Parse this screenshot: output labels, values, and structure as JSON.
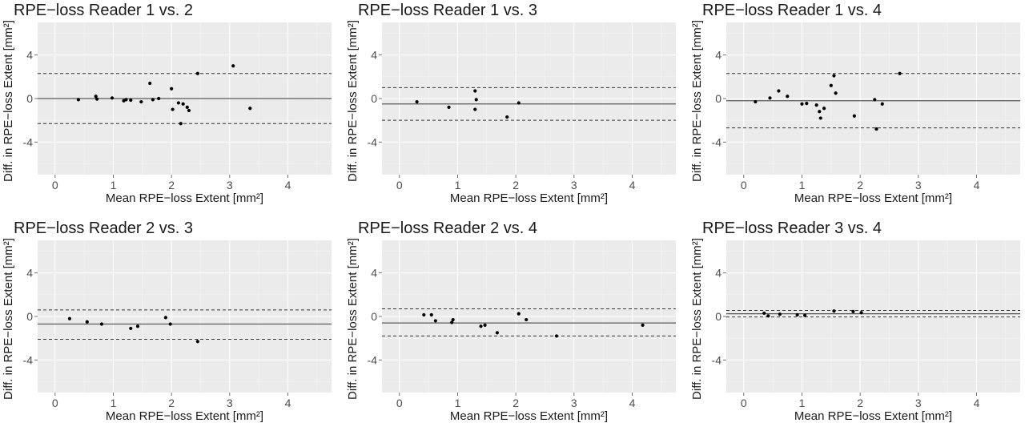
{
  "chart_data": [
    {
      "type": "scatter",
      "title": "RPE−loss Reader 1 vs. 2",
      "xlabel": "Mean RPE−loss Extent [mm²]",
      "ylabel": "Diff. in RPE−loss Extent [mm²]",
      "xlim": [
        -0.3,
        4.75
      ],
      "ylim": [
        -7,
        7
      ],
      "xticks": [
        0,
        1,
        2,
        3,
        4
      ],
      "yticks": [
        -4,
        0,
        4
      ],
      "mean_diff": 0.0,
      "loa_upper": 2.3,
      "loa_lower": -2.3,
      "points": [
        {
          "x": 0.4,
          "y": -0.1
        },
        {
          "x": 0.7,
          "y": 0.2
        },
        {
          "x": 0.72,
          "y": -0.05
        },
        {
          "x": 0.98,
          "y": 0.05
        },
        {
          "x": 1.18,
          "y": -0.2
        },
        {
          "x": 1.22,
          "y": -0.1
        },
        {
          "x": 1.3,
          "y": -0.15
        },
        {
          "x": 1.48,
          "y": -0.3
        },
        {
          "x": 1.63,
          "y": 1.4
        },
        {
          "x": 1.68,
          "y": -0.1
        },
        {
          "x": 1.78,
          "y": 0.0
        },
        {
          "x": 2.0,
          "y": 0.9
        },
        {
          "x": 2.02,
          "y": -1.0
        },
        {
          "x": 2.12,
          "y": -0.4
        },
        {
          "x": 2.16,
          "y": -2.3
        },
        {
          "x": 2.2,
          "y": -0.5
        },
        {
          "x": 2.27,
          "y": -0.8
        },
        {
          "x": 2.3,
          "y": -1.1
        },
        {
          "x": 2.45,
          "y": 2.3
        },
        {
          "x": 3.06,
          "y": 3.0
        },
        {
          "x": 3.35,
          "y": -0.9
        }
      ]
    },
    {
      "type": "scatter",
      "title": "RPE−loss Reader 1 vs. 3",
      "xlabel": "Mean RPE−loss Extent [mm²]",
      "ylabel": "Diff. in RPE−loss Extent [mm²]",
      "xlim": [
        -0.3,
        4.75
      ],
      "ylim": [
        -7,
        7
      ],
      "xticks": [
        0,
        1,
        2,
        3,
        4
      ],
      "yticks": [
        -4,
        0,
        4
      ],
      "mean_diff": -0.5,
      "loa_upper": 1.0,
      "loa_lower": -2.0,
      "points": [
        {
          "x": 0.3,
          "y": -0.3
        },
        {
          "x": 0.85,
          "y": -0.8
        },
        {
          "x": 1.3,
          "y": 0.7
        },
        {
          "x": 1.32,
          "y": -0.1
        },
        {
          "x": 1.3,
          "y": -1.0
        },
        {
          "x": 1.85,
          "y": -1.7
        },
        {
          "x": 2.05,
          "y": -0.4
        }
      ]
    },
    {
      "type": "scatter",
      "title": "RPE−loss Reader 1 vs. 4",
      "xlabel": "Mean RPE−loss Extent [mm²]",
      "ylabel": "Diff. in RPE−loss Extent [mm²]",
      "xlim": [
        -0.3,
        4.75
      ],
      "ylim": [
        -7,
        7
      ],
      "xticks": [
        0,
        1,
        2,
        3,
        4
      ],
      "yticks": [
        -4,
        0,
        4
      ],
      "mean_diff": -0.2,
      "loa_upper": 2.3,
      "loa_lower": -2.7,
      "points": [
        {
          "x": 0.2,
          "y": -0.3
        },
        {
          "x": 0.45,
          "y": 0.05
        },
        {
          "x": 0.6,
          "y": 0.7
        },
        {
          "x": 0.75,
          "y": 0.2
        },
        {
          "x": 1.0,
          "y": -0.5
        },
        {
          "x": 1.08,
          "y": -0.45
        },
        {
          "x": 1.25,
          "y": -0.6
        },
        {
          "x": 1.3,
          "y": -1.2
        },
        {
          "x": 1.32,
          "y": -1.8
        },
        {
          "x": 1.38,
          "y": -0.9
        },
        {
          "x": 1.5,
          "y": 1.2
        },
        {
          "x": 1.55,
          "y": 2.1
        },
        {
          "x": 1.58,
          "y": 0.5
        },
        {
          "x": 1.9,
          "y": -1.6
        },
        {
          "x": 2.25,
          "y": -0.1
        },
        {
          "x": 2.28,
          "y": -2.8
        },
        {
          "x": 2.38,
          "y": -0.5
        },
        {
          "x": 2.68,
          "y": 2.3
        }
      ]
    },
    {
      "type": "scatter",
      "title": "RPE−loss Reader 2 vs. 3",
      "xlabel": "Mean RPE−loss Extent [mm²]",
      "ylabel": "Diff. in RPE−loss Extent [mm²]",
      "xlim": [
        -0.3,
        4.75
      ],
      "ylim": [
        -7,
        7
      ],
      "xticks": [
        0,
        1,
        2,
        3,
        4
      ],
      "yticks": [
        -4,
        0,
        4
      ],
      "mean_diff": -0.7,
      "loa_upper": 0.6,
      "loa_lower": -2.1,
      "points": [
        {
          "x": 0.25,
          "y": -0.2
        },
        {
          "x": 0.55,
          "y": -0.5
        },
        {
          "x": 0.8,
          "y": -0.7
        },
        {
          "x": 1.3,
          "y": -1.1
        },
        {
          "x": 1.42,
          "y": -0.9
        },
        {
          "x": 1.9,
          "y": -0.1
        },
        {
          "x": 1.98,
          "y": -0.7
        },
        {
          "x": 2.45,
          "y": -2.3
        }
      ]
    },
    {
      "type": "scatter",
      "title": "RPE−loss Reader 2 vs. 4",
      "xlabel": "Mean RPE−loss Extent [mm²]",
      "ylabel": "Diff. in RPE−loss Extent [mm²]",
      "xlim": [
        -0.3,
        4.75
      ],
      "ylim": [
        -7,
        7
      ],
      "xticks": [
        0,
        1,
        2,
        3,
        4
      ],
      "yticks": [
        -4,
        0,
        4
      ],
      "mean_diff": -0.6,
      "loa_upper": 0.7,
      "loa_lower": -1.8,
      "points": [
        {
          "x": 0.42,
          "y": 0.15
        },
        {
          "x": 0.55,
          "y": 0.15
        },
        {
          "x": 0.62,
          "y": -0.4
        },
        {
          "x": 0.92,
          "y": -0.3
        },
        {
          "x": 0.9,
          "y": -0.55
        },
        {
          "x": 1.4,
          "y": -0.9
        },
        {
          "x": 1.47,
          "y": -0.8
        },
        {
          "x": 1.68,
          "y": -1.5
        },
        {
          "x": 2.05,
          "y": 0.25
        },
        {
          "x": 2.18,
          "y": -0.3
        },
        {
          "x": 2.7,
          "y": -1.8
        },
        {
          "x": 4.18,
          "y": -0.8
        }
      ]
    },
    {
      "type": "scatter",
      "title": "RPE−loss Reader 3 vs. 4",
      "xlabel": "Mean RPE−loss Extent [mm²]",
      "ylabel": "Diff. in RPE−loss Extent [mm²]",
      "xlim": [
        -0.3,
        4.75
      ],
      "ylim": [
        -7,
        7
      ],
      "xticks": [
        0,
        1,
        2,
        3,
        4
      ],
      "yticks": [
        -4,
        0,
        4
      ],
      "mean_diff": 0.25,
      "loa_upper": 0.55,
      "loa_lower": -0.05,
      "points": [
        {
          "x": 0.35,
          "y": 0.3
        },
        {
          "x": 0.42,
          "y": 0.05
        },
        {
          "x": 0.62,
          "y": 0.2
        },
        {
          "x": 0.92,
          "y": 0.15
        },
        {
          "x": 1.05,
          "y": 0.1
        },
        {
          "x": 1.55,
          "y": 0.5
        },
        {
          "x": 1.88,
          "y": 0.45
        },
        {
          "x": 2.02,
          "y": 0.35
        }
      ]
    }
  ]
}
